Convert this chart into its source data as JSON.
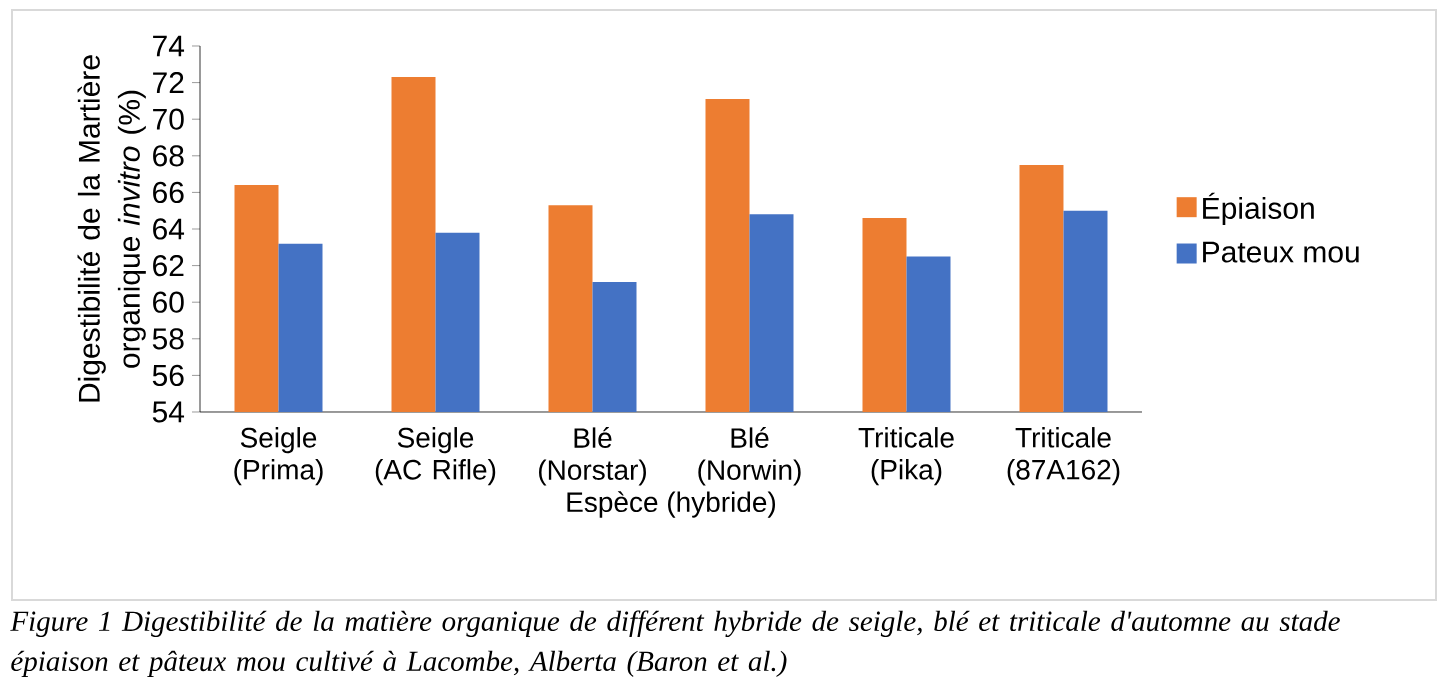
{
  "chart_data": {
    "type": "bar",
    "categories": [
      "Seigle (Prima)",
      "Seigle (AC Rifle)",
      "Blé (Norstar)",
      "Blé (Norwin)",
      "Triticale (Pika)",
      "Triticale (87A162)"
    ],
    "series": [
      {
        "name": "Épiaison",
        "color": "#ed7d31",
        "values": [
          66.4,
          72.3,
          65.3,
          71.1,
          64.6,
          67.5
        ]
      },
      {
        "name": "Pateux mou",
        "color": "#4472c4",
        "values": [
          63.2,
          63.8,
          61.1,
          64.8,
          62.5,
          65.0
        ]
      }
    ],
    "xlabel": "Espèce (hybride)",
    "ylabel": "Digestibilité de la Martière organique *invitro*  (%)",
    "ylim": [
      54,
      74
    ],
    "yticks": [
      54,
      56,
      58,
      60,
      62,
      64,
      66,
      68,
      70,
      72,
      74
    ],
    "legend": "right",
    "annotations": [
      "Figure 1 Digestibilité de la matière organique de différent hybride de seigle, blé et triticale d'automne au stade épiaison et pâteux mou cultivé à Lacombe, Alberta (Baron et al.)"
    ]
  }
}
